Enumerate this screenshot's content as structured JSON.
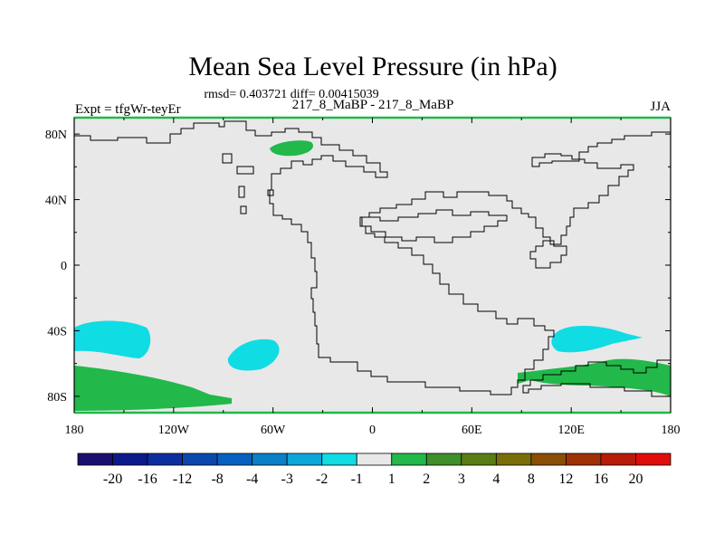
{
  "chart_data": {
    "type": "heatmap",
    "title": "Mean Sea Level Pressure (in hPa)",
    "subtitle": "rmsd= 0.403721 diff= 0.00415039",
    "left_label": "Expt = tfgWr-teyEr",
    "center_label": "217_8_MaBP - 217_8_MaBP",
    "right_label": "JJA",
    "x_ticks": [
      "180",
      "120W",
      "60W",
      "0",
      "60E",
      "120E",
      "180"
    ],
    "y_ticks": [
      "80N",
      "40N",
      "0",
      "40S",
      "80S"
    ],
    "xlim": [
      -180,
      180
    ],
    "ylim": [
      -90,
      90
    ],
    "colorbar": {
      "labels": [
        "-20",
        "-16",
        "-12",
        "-8",
        "-4",
        "-3",
        "-2",
        "-1",
        "1",
        "2",
        "3",
        "4",
        "8",
        "12",
        "16",
        "20"
      ],
      "colors": [
        "#1a0f6e",
        "#0a1a8c",
        "#0e2ea0",
        "#0b48ae",
        "#0660bf",
        "#0a80c8",
        "#0ca6d8",
        "#10dce4",
        "#e8e8e8",
        "#22b84a",
        "#3f8f2a",
        "#5a7d15",
        "#7a6e08",
        "#8a4e05",
        "#a03006",
        "#b81c08",
        "#e00d0b"
      ]
    },
    "background_color": "#e8e8e8",
    "coast_color": "#000000",
    "regions": [
      {
        "name": "positive-1-2",
        "level": "1 to 2",
        "color": "#22b84a",
        "lon": [
          -62,
          -33
        ],
        "lat": [
          69,
          78
        ]
      },
      {
        "name": "positive-1-2",
        "level": "1 to 2",
        "color": "#22b84a",
        "lon": [
          -180,
          -85
        ],
        "lat": [
          -90,
          -58
        ]
      },
      {
        "name": "positive-1-2",
        "level": "1 to 2",
        "color": "#22b84a",
        "lon": [
          86,
          180
        ],
        "lat": [
          -76,
          -56
        ]
      },
      {
        "name": "negative-1-2",
        "level": "-2 to -1",
        "color": "#10dce4",
        "lon": [
          -180,
          -152
        ],
        "lat": [
          -55,
          -34
        ]
      },
      {
        "name": "negative-1-2",
        "level": "-2 to -1",
        "color": "#10dce4",
        "lon": [
          -90,
          -56
        ],
        "lat": [
          -63,
          -44
        ]
      },
      {
        "name": "negative-1-2",
        "level": "-2 to -1",
        "color": "#10dce4",
        "lon": [
          110,
          165
        ],
        "lat": [
          -52,
          -35
        ]
      }
    ]
  }
}
